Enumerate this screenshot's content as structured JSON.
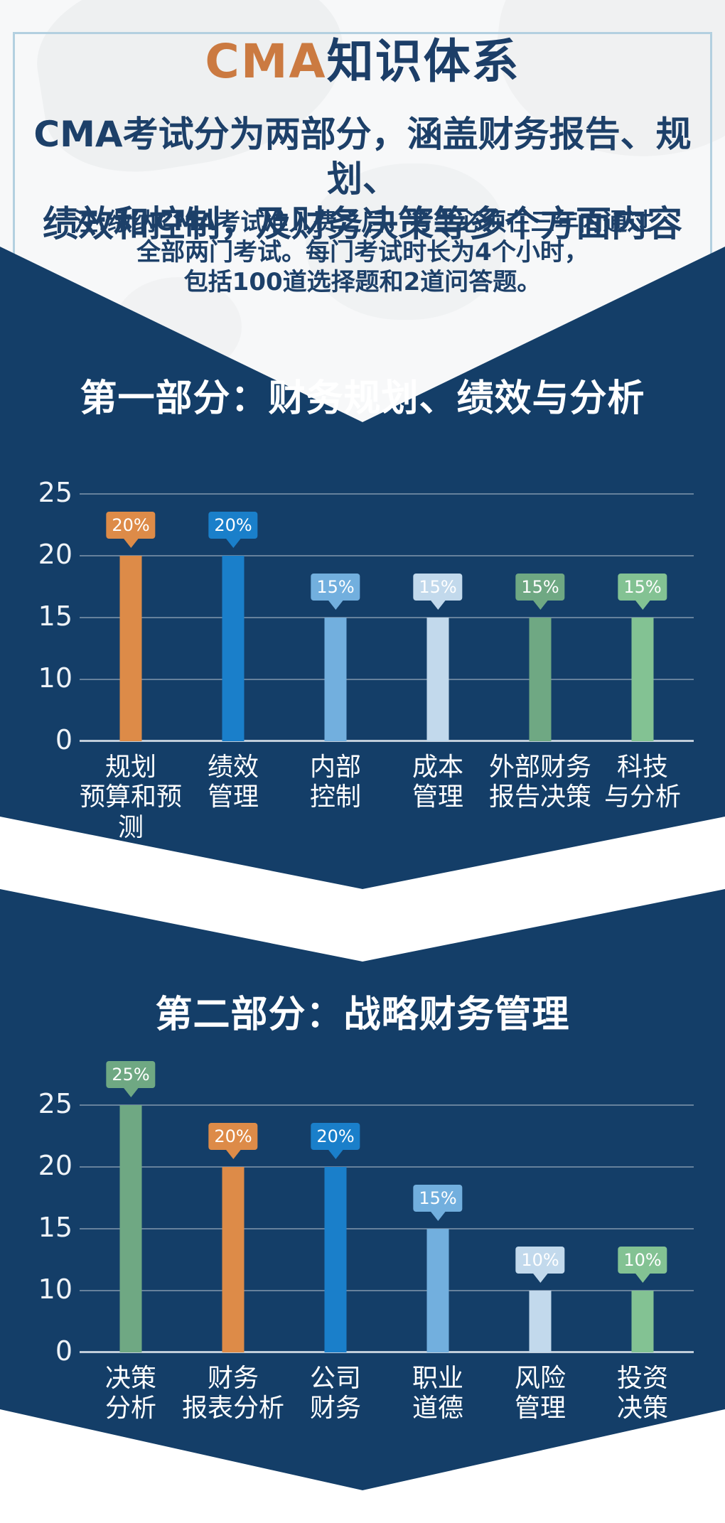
{
  "header": {
    "title_accent": "CMA",
    "title_rest": "知识体系",
    "subtitle_line1": "CMA考试分为两部分，涵盖财务报告、规划、",
    "subtitle_line2": "绩效和控制，及财务决策等多个方面内容",
    "note_line1": "注:缴纳CMA考试准入费之后，考生必须在三年内通过",
    "note_line2": "全部两门考试。每门考试时长为4个小时，",
    "note_line3": "包括100道选择题和2道问答题。"
  },
  "colors": {
    "navy_background": "#143e68",
    "page_background": "#f7f8f9",
    "card_border": "#b3d0e0",
    "title_accent": "#cb7a41",
    "title_navy": "#1c3e68",
    "gridline": "rgba(255,255,255,0.35)",
    "tick_text": "#eef3f8"
  },
  "chart_data": [
    {
      "type": "bar",
      "title": "第一部分：财务规划、绩效与分析",
      "categories": [
        [
          "规划",
          "预算和预测"
        ],
        [
          "绩效",
          "管理"
        ],
        [
          "内部",
          "控制"
        ],
        [
          "成本",
          "管理"
        ],
        [
          "外部财务",
          "报告决策"
        ],
        [
          "科技",
          "与分析"
        ]
      ],
      "values": [
        20,
        20,
        15,
        15,
        15,
        15
      ],
      "value_labels": [
        "20%",
        "20%",
        "15%",
        "15%",
        "15%",
        "15%"
      ],
      "bar_colors": [
        "#dd8b48",
        "#1a7fca",
        "#72afde",
        "#c2d9ec",
        "#6fa883",
        "#83c293"
      ],
      "xlabel": "",
      "ylabel": "",
      "yticks": [
        0,
        10,
        15,
        20,
        25
      ],
      "ylim": [
        0,
        25
      ],
      "grid": true,
      "legend": "none"
    },
    {
      "type": "bar",
      "title": "第二部分：战略财务管理",
      "categories": [
        [
          "决策",
          "分析"
        ],
        [
          "财务",
          "报表分析"
        ],
        [
          "公司",
          "财务"
        ],
        [
          "职业",
          "道德"
        ],
        [
          "风险",
          "管理"
        ],
        [
          "投资",
          "决策"
        ]
      ],
      "values": [
        25,
        20,
        20,
        15,
        10,
        10
      ],
      "value_labels": [
        "25%",
        "20%",
        "20%",
        "15%",
        "10%",
        "10%"
      ],
      "bar_colors": [
        "#6fa883",
        "#dd8b48",
        "#1a7fca",
        "#72afde",
        "#c2d9ec",
        "#83c293"
      ],
      "xlabel": "",
      "ylabel": "",
      "yticks": [
        0,
        10,
        15,
        20,
        25
      ],
      "ylim": [
        0,
        25
      ],
      "grid": true,
      "legend": "none"
    }
  ]
}
